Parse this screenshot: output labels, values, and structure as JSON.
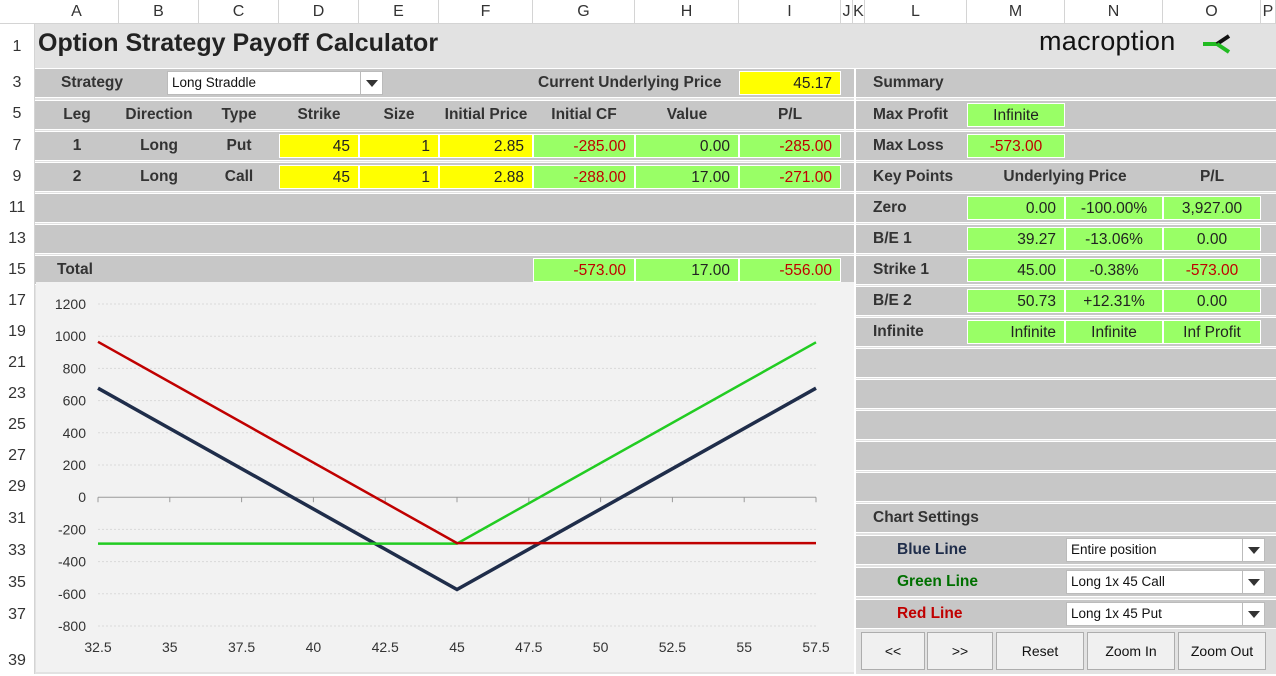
{
  "columns": [
    "A",
    "B",
    "C",
    "D",
    "E",
    "F",
    "G",
    "H",
    "I",
    "J",
    "K",
    "L",
    "M",
    "N",
    "O",
    "P"
  ],
  "rows": [
    "1",
    "3",
    "5",
    "7",
    "9",
    "11",
    "13",
    "15",
    "17",
    "19",
    "21",
    "23",
    "25",
    "27",
    "29",
    "31",
    "33",
    "35",
    "37",
    "39"
  ],
  "title": "Option Strategy Payoff Calculator",
  "brand": "macroption",
  "strategy": {
    "label": "Strategy",
    "value": "Long Straddle"
  },
  "underlying": {
    "label": "Current Underlying Price",
    "value": "45.17"
  },
  "legs_header": [
    "Leg",
    "Direction",
    "Type",
    "Strike",
    "Size",
    "Initial Price",
    "Initial CF",
    "Value",
    "P/L"
  ],
  "legs": [
    {
      "leg": "1",
      "direction": "Long",
      "type": "Put",
      "strike": "45",
      "size": "1",
      "price": "2.85",
      "cf": "-285.00",
      "value": "0.00",
      "pl": "-285.00"
    },
    {
      "leg": "2",
      "direction": "Long",
      "type": "Call",
      "strike": "45",
      "size": "1",
      "price": "2.88",
      "cf": "-288.00",
      "value": "17.00",
      "pl": "-271.00"
    }
  ],
  "total": {
    "label": "Total",
    "cf": "-573.00",
    "value": "17.00",
    "pl": "-556.00"
  },
  "summary": {
    "label": "Summary",
    "max_profit_label": "Max Profit",
    "max_profit": "Infinite",
    "max_loss_label": "Max Loss",
    "max_loss": "-573.00"
  },
  "key_points": {
    "headers": [
      "Key Points",
      "Underlying Price",
      "P/L"
    ],
    "rows": [
      {
        "name": "Zero",
        "price": "0.00",
        "pct": "-100.00%",
        "pl": "3,927.00"
      },
      {
        "name": "B/E 1",
        "price": "39.27",
        "pct": "-13.06%",
        "pl": "0.00"
      },
      {
        "name": "Strike 1",
        "price": "45.00",
        "pct": "-0.38%",
        "pl": "-573.00"
      },
      {
        "name": "B/E 2",
        "price": "50.73",
        "pct": "+12.31%",
        "pl": "0.00"
      },
      {
        "name": "Infinite",
        "price": "Infinite",
        "pct": "Infinite",
        "pl": "Inf Profit"
      }
    ]
  },
  "chart_settings": {
    "label": "Chart Settings",
    "blue_label": "Blue Line",
    "blue_value": "Entire position",
    "green_label": "Green Line",
    "green_value": "Long 1x 45 Call",
    "red_label": "Red Line",
    "red_value": "Long 1x 45 Put"
  },
  "buttons": {
    "prev": "<<",
    "next": ">>",
    "reset": "Reset",
    "zoom_in": "Zoom In",
    "zoom_out": "Zoom Out"
  },
  "colors": {
    "blue": "#1f2d4a",
    "green": "#22cc22",
    "red": "#c00000"
  },
  "chart_data": {
    "type": "line",
    "x": [
      32.5,
      35,
      37.5,
      40,
      42.5,
      45,
      47.5,
      50,
      52.5,
      55,
      57.5
    ],
    "xlim": [
      32.5,
      57.5
    ],
    "ylim": [
      -800,
      1200
    ],
    "yticks": [
      "1200",
      "1000",
      "800",
      "600",
      "400",
      "200",
      "0",
      "-200",
      "-400",
      "-600",
      "-800"
    ],
    "xticks": [
      "32.5",
      "35",
      "37.5",
      "40",
      "42.5",
      "45",
      "47.5",
      "50",
      "52.5",
      "55",
      "57.5"
    ],
    "series": [
      {
        "name": "Entire position",
        "color": "#1f2d4a",
        "points": [
          [
            32.5,
            677
          ],
          [
            45,
            -573
          ],
          [
            57.5,
            677
          ]
        ]
      },
      {
        "name": "Long 1x 45 Call",
        "color": "#22cc22",
        "points": [
          [
            32.5,
            -288
          ],
          [
            45,
            -288
          ],
          [
            57.5,
            962
          ]
        ]
      },
      {
        "name": "Long 1x 45 Put",
        "color": "#c00000",
        "points": [
          [
            32.5,
            965
          ],
          [
            45,
            -285
          ],
          [
            57.5,
            -285
          ]
        ]
      }
    ],
    "grid": true
  }
}
